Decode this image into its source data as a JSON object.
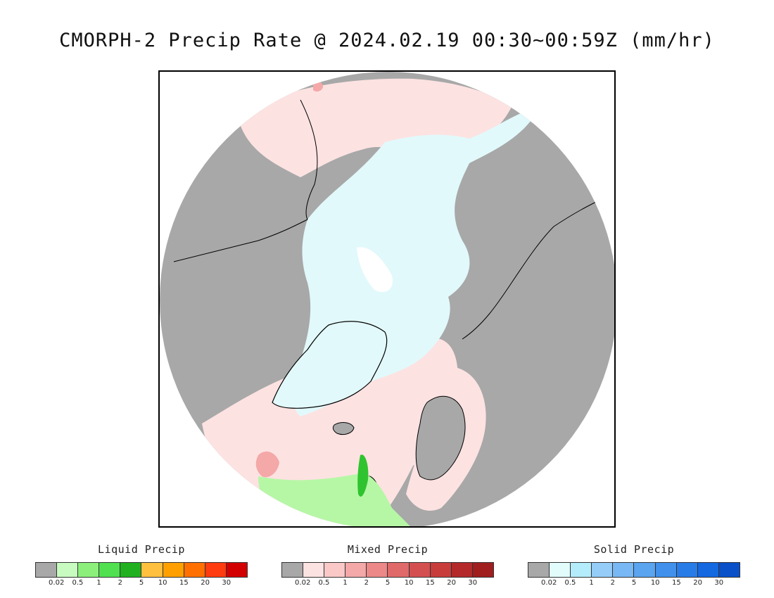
{
  "title": "CMORPH-2 Precip Rate @ 2024.02.19 00:30~00:59Z (mm/hr)",
  "map": {
    "projection": "north polar stereographic",
    "colors": {
      "background_land_no_precip": "#a8a8a8",
      "mixed_light": "#fde2e2",
      "mixed_light2": "#fbc8c8",
      "mixed_mid": "#f09a9a",
      "solid_light": "#e2f9fb",
      "solid_white": "#ffffff",
      "liquid_light": "#b6f7a6",
      "liquid_mid": "#86ef6c",
      "liquid_strong": "#2fc42f",
      "coast": "#000000"
    }
  },
  "legends": [
    {
      "title": "Liquid Precip",
      "colors": [
        "#a8a8a8",
        "#c8fbc0",
        "#8cef7c",
        "#50e050",
        "#20b020",
        "#ffc040",
        "#ffa000",
        "#ff7000",
        "#ff3c10",
        "#d20000"
      ],
      "ticks": [
        "0.02",
        "0.5",
        "1",
        "2",
        "5",
        "10",
        "15",
        "20",
        "30"
      ]
    },
    {
      "title": "Mixed Precip",
      "colors": [
        "#a8a8a8",
        "#fde2e2",
        "#fbc8c8",
        "#f4a8a8",
        "#ec8888",
        "#e06a6a",
        "#d45050",
        "#c83c3c",
        "#b42a2a",
        "#a01e1e"
      ],
      "ticks": [
        "0.02",
        "0.5",
        "1",
        "2",
        "5",
        "10",
        "15",
        "20",
        "30"
      ]
    },
    {
      "title": "Solid Precip",
      "colors": [
        "#a8a8a8",
        "#e2fcfc",
        "#b4ecfc",
        "#96ccf8",
        "#78b8f4",
        "#5aa4f0",
        "#4090ec",
        "#287ce8",
        "#1468e0",
        "#0a50c8"
      ],
      "ticks": [
        "0.02",
        "0.5",
        "1",
        "2",
        "5",
        "10",
        "15",
        "20",
        "30"
      ]
    }
  ]
}
